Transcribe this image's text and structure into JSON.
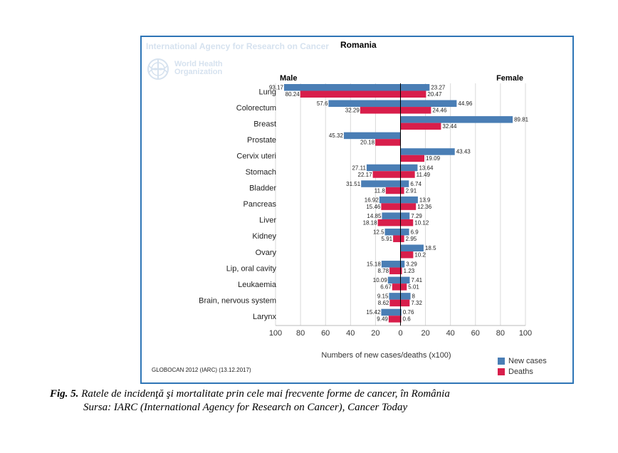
{
  "header": {
    "agency": "International Agency for Research on Cancer",
    "who": [
      "World Health",
      "Organization"
    ],
    "country": "Romania"
  },
  "colors": {
    "new_cases": "#4a7eb5",
    "deaths": "#d81e4b",
    "frame": "#2e75b6"
  },
  "chart_data": {
    "type": "bar",
    "orientation": "horizontal-butterfly",
    "title": "Romania",
    "left_label": "Male",
    "right_label": "Female",
    "xlabel": "Numbers of new cases/deaths (x100)",
    "xlim": [
      -100,
      100
    ],
    "xticks": [
      -100,
      -80,
      -60,
      -40,
      -20,
      0,
      20,
      40,
      60,
      80,
      100
    ],
    "xtick_labels": [
      "100",
      "80",
      "60",
      "40",
      "20",
      "0",
      "20",
      "40",
      "60",
      "80",
      "100"
    ],
    "categories": [
      "Lung",
      "Colorectum",
      "Breast",
      "Prostate",
      "Cervix uteri",
      "Stomach",
      "Bladder",
      "Pancreas",
      "Liver",
      "Kidney",
      "Ovary",
      "Lip, oral cavity",
      "Leukaemia",
      "Brain, nervous system",
      "Larynx"
    ],
    "legend": [
      "New cases",
      "Deaths"
    ],
    "series": [
      {
        "name": "Male new cases",
        "side": "left",
        "kind": "new",
        "values": [
          93.17,
          57.6,
          null,
          45.32,
          null,
          27.11,
          31.51,
          16.92,
          14.85,
          12.5,
          null,
          15.18,
          10.09,
          9.15,
          15.42
        ],
        "labels": [
          "93.17",
          "57.6",
          null,
          "45.32",
          null,
          "27.11",
          "31.51",
          "16.92",
          "14.85",
          "12.5",
          null,
          "15.18",
          "10.09",
          "9.15",
          "15.42"
        ]
      },
      {
        "name": "Male deaths",
        "side": "left",
        "kind": "death",
        "values": [
          80.24,
          32.29,
          null,
          20.18,
          null,
          22.17,
          11.8,
          15.46,
          18.18,
          5.91,
          null,
          8.78,
          6.67,
          8.62,
          9.49
        ],
        "labels": [
          "80.24",
          "32.29",
          null,
          "20.18",
          null,
          "22.17",
          "11.8",
          "15.46",
          "18.18",
          "5.91",
          null,
          "8.78",
          "6.67",
          "8.62",
          "9.49"
        ]
      },
      {
        "name": "Female new cases",
        "side": "right",
        "kind": "new",
        "values": [
          23.27,
          44.96,
          89.81,
          null,
          43.43,
          13.64,
          6.74,
          13.9,
          7.29,
          6.9,
          18.5,
          3.29,
          7.41,
          8,
          0.76
        ],
        "labels": [
          "23.27",
          "44.96",
          "89.81",
          null,
          "43.43",
          "13.64",
          "6.74",
          "13.9",
          "7.29",
          "6.9",
          "18.5",
          "3.29",
          "7.41",
          "8",
          "0.76"
        ]
      },
      {
        "name": "Female deaths",
        "side": "right",
        "kind": "death",
        "values": [
          20.47,
          24.46,
          32.44,
          null,
          19.09,
          11.49,
          2.91,
          12.36,
          10.12,
          2.95,
          10.2,
          1.23,
          5.01,
          7.32,
          0.6
        ],
        "labels": [
          "20.47",
          "24.46",
          "32.44",
          null,
          "19.09",
          "11.49",
          "2.91",
          "12.36",
          "10.12",
          "2.95",
          "10.2",
          "1.23",
          "5.01",
          "7.32",
          "0.6"
        ]
      }
    ]
  },
  "footer": {
    "source": "GLOBOCAN 2012 (IARC) (13.12.2017)"
  },
  "caption": {
    "fig_label": "Fig. 5.",
    "fig_text": " Ratele de incidenţă şi mortalitate prin cele mai frecvente forme de cancer, în România",
    "source_line": "Sursa: IARC (International Agency for Research on Cancer), Cancer Today"
  }
}
